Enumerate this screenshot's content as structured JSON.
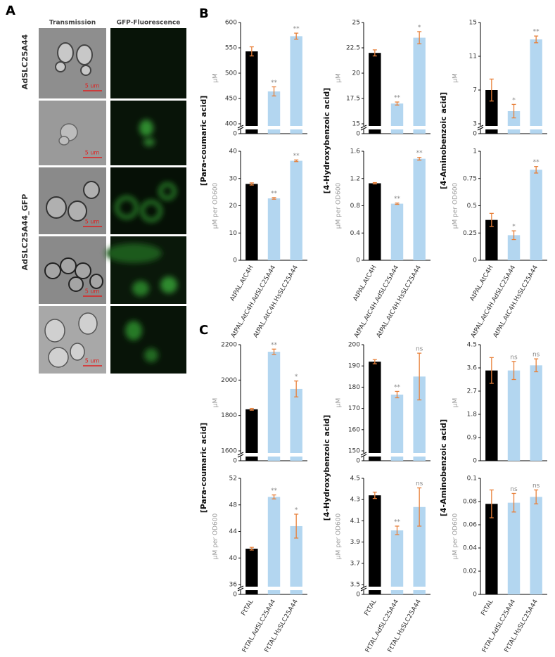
{
  "panels": {
    "a": {
      "label": "A",
      "columns": [
        "Transmission",
        "GFP-Fluorescence"
      ],
      "rows": [
        "AdSLC25A44",
        "AdSLC25A44_GFP"
      ],
      "scale_bars": [
        "5 um",
        "5 um",
        "5 um",
        "5 um",
        "5 um"
      ]
    },
    "b": {
      "label": "B",
      "compounds": [
        "[Para-coumaric acid]",
        "[4-Hydroxybenzoic acid]",
        "[4-Aminobenzoic acid]"
      ]
    },
    "c": {
      "label": "C",
      "compounds": [
        "[Para-coumaric acid]",
        "[4-Hydroxybenzoic acid]",
        "[4-Aminobenzoic acid]"
      ]
    }
  },
  "chart_data": [
    {
      "type": "bar",
      "ylabel": "µM",
      "values": [
        543,
        464,
        573
      ],
      "errors": [
        9,
        9,
        6
      ],
      "significance": [
        null,
        "**",
        "**"
      ],
      "colors": [
        "#000000",
        "#b3d6f0",
        "#b3d6f0"
      ],
      "error_color": "#e8803a",
      "ylim": [
        0,
        600
      ],
      "ybreak": [
        0,
        400
      ],
      "yticks": [
        0,
        400,
        450,
        500,
        550,
        600
      ]
    },
    {
      "type": "bar",
      "ylabel": "µM",
      "values": [
        22,
        17,
        23.5
      ],
      "errors": [
        0.3,
        0.15,
        0.6
      ],
      "significance": [
        null,
        "**",
        "*"
      ],
      "colors": [
        "#000000",
        "#b3d6f0",
        "#b3d6f0"
      ],
      "error_color": "#e8803a",
      "ylim": [
        0,
        25
      ],
      "ybreak": [
        0,
        15
      ],
      "yticks": [
        0,
        15,
        17.5,
        20,
        22.5,
        25
      ]
    },
    {
      "type": "bar",
      "ylabel": "µM",
      "values": [
        7,
        4.5,
        13
      ],
      "errors": [
        1.3,
        0.8,
        0.4
      ],
      "significance": [
        null,
        "*",
        "**"
      ],
      "colors": [
        "#000000",
        "#b3d6f0",
        "#b3d6f0"
      ],
      "error_color": "#e8803a",
      "ylim": [
        0,
        15
      ],
      "ybreak": [
        0,
        3
      ],
      "yticks": [
        0,
        3,
        7,
        11,
        15
      ]
    },
    {
      "type": "bar",
      "ylabel": "µM per OD600",
      "values": [
        28,
        22.7,
        36.5
      ],
      "errors": [
        0.4,
        0.3,
        0.3
      ],
      "significance": [
        null,
        "**",
        "**"
      ],
      "colors": [
        "#000000",
        "#b3d6f0",
        "#b3d6f0"
      ],
      "error_color": "#e8803a",
      "categories": [
        "AtPAL.AtC4H",
        "AtPAL.AtC4H.AdSLC25A44",
        "AtPAL.AtC4H.HsSLC25A44"
      ],
      "ylim": [
        0,
        40
      ],
      "yticks": [
        0,
        10,
        20,
        30,
        40
      ]
    },
    {
      "type": "bar",
      "ylabel": "µM per OD600",
      "values": [
        1.13,
        0.83,
        1.49
      ],
      "errors": [
        0.01,
        0.01,
        0.02
      ],
      "significance": [
        null,
        "**",
        "**"
      ],
      "colors": [
        "#000000",
        "#b3d6f0",
        "#b3d6f0"
      ],
      "error_color": "#e8803a",
      "categories": [
        "AtPAL.AtC4H",
        "AtPAL.AtC4H.AdSLC25A44",
        "AtPAL.AtC4H.HsSLC25A44"
      ],
      "ylim": [
        0,
        1.6
      ],
      "yticks": [
        0,
        0.4,
        0.8,
        1.2,
        1.6
      ]
    },
    {
      "type": "bar",
      "ylabel": "µM per OD600",
      "values": [
        0.37,
        0.23,
        0.83
      ],
      "errors": [
        0.06,
        0.04,
        0.03
      ],
      "significance": [
        null,
        "*",
        "**"
      ],
      "colors": [
        "#000000",
        "#b3d6f0",
        "#b3d6f0"
      ],
      "error_color": "#e8803a",
      "categories": [
        "AtPAL.AtC4H",
        "AtPAL.AtC4H.AdSLC25A44",
        "AtPAL.AtC4H.HsSLC25A44"
      ],
      "ylim": [
        0,
        1
      ],
      "yticks": [
        0,
        0.25,
        0.5,
        0.75,
        1
      ]
    },
    {
      "type": "bar",
      "ylabel": "µM",
      "values": [
        1835,
        2160,
        1950
      ],
      "errors": [
        5,
        15,
        45
      ],
      "significance": [
        null,
        "**",
        "*"
      ],
      "colors": [
        "#000000",
        "#b3d6f0",
        "#b3d6f0"
      ],
      "error_color": "#e8803a",
      "ylim": [
        0,
        2200
      ],
      "ybreak": [
        0,
        1600
      ],
      "yticks": [
        0,
        1600,
        1800,
        2000,
        2200
      ]
    },
    {
      "type": "bar",
      "ylabel": "µM",
      "values": [
        192,
        176.5,
        185
      ],
      "errors": [
        1,
        1.5,
        11
      ],
      "significance": [
        null,
        "**",
        "ns"
      ],
      "colors": [
        "#000000",
        "#b3d6f0",
        "#b3d6f0"
      ],
      "error_color": "#e8803a",
      "ylim": [
        0,
        200
      ],
      "ybreak": [
        0,
        150
      ],
      "yticks": [
        0,
        150,
        160,
        170,
        180,
        190,
        200
      ]
    },
    {
      "type": "bar",
      "ylabel": "µM",
      "values": [
        3.5,
        3.5,
        3.7
      ],
      "errors": [
        0.5,
        0.35,
        0.25
      ],
      "significance": [
        null,
        "ns",
        "ns"
      ],
      "colors": [
        "#000000",
        "#b3d6f0",
        "#b3d6f0"
      ],
      "error_color": "#e8803a",
      "ylim": [
        0,
        4.5
      ],
      "yticks": [
        0,
        0.9,
        1.8,
        2.7,
        3.6,
        4.5
      ]
    },
    {
      "type": "bar",
      "ylabel": "µM per OD600",
      "values": [
        41.4,
        49.2,
        44.8
      ],
      "errors": [
        0.2,
        0.3,
        1.8
      ],
      "significance": [
        null,
        "**",
        "*"
      ],
      "colors": [
        "#000000",
        "#b3d6f0",
        "#b3d6f0"
      ],
      "error_color": "#e8803a",
      "categories": [
        "FtTAL",
        "FtTAL.AdSLC25A44",
        "FtTAL.HsSLC25A44"
      ],
      "ylim": [
        0,
        52
      ],
      "ybreak": [
        0,
        36
      ],
      "yticks": [
        0,
        36,
        40,
        44,
        48,
        52
      ]
    },
    {
      "type": "bar",
      "ylabel": "µM per OD600",
      "values": [
        4.34,
        4.01,
        4.23
      ],
      "errors": [
        0.03,
        0.04,
        0.18
      ],
      "significance": [
        null,
        "**",
        "ns"
      ],
      "colors": [
        "#000000",
        "#b3d6f0",
        "#b3d6f0"
      ],
      "error_color": "#e8803a",
      "categories": [
        "FtTAL",
        "FtTAL.AdSLC25A44",
        "FtTAL.HsSLC25A44"
      ],
      "ylim": [
        0,
        4.5
      ],
      "ybreak": [
        0,
        3.5
      ],
      "yticks": [
        0,
        3.5,
        3.7,
        3.9,
        4.1,
        4.3,
        4.5
      ]
    },
    {
      "type": "bar",
      "ylabel": "µM per OD600",
      "values": [
        0.078,
        0.079,
        0.084
      ],
      "errors": [
        0.012,
        0.008,
        0.006
      ],
      "significance": [
        null,
        "ns",
        "ns"
      ],
      "colors": [
        "#000000",
        "#b3d6f0",
        "#b3d6f0"
      ],
      "error_color": "#e8803a",
      "categories": [
        "FtTAL",
        "FtTAL.AdSLC25A44",
        "FtTAL.HsSLC25A44"
      ],
      "ylim": [
        0,
        0.1
      ],
      "yticks": [
        0,
        0.02,
        0.04,
        0.06,
        0.08,
        0.1
      ]
    }
  ]
}
